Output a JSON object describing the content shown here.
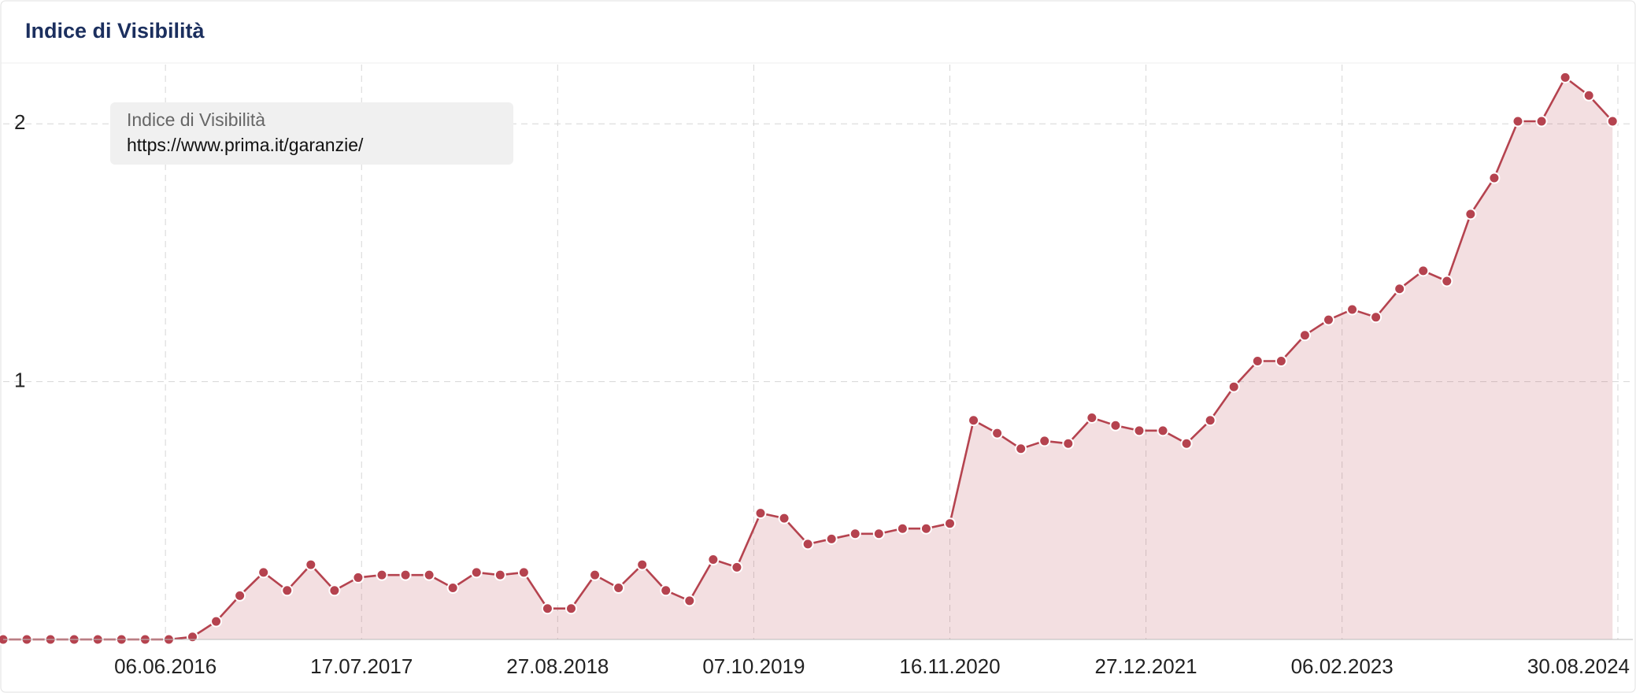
{
  "chart_data": {
    "type": "area",
    "title": "Indice di Visibilità",
    "legend_title": "Indice di Visibilità",
    "x": [
      "06.07.2015",
      "24.08.2015",
      "12.10.2015",
      "30.11.2015",
      "18.01.2016",
      "07.03.2016",
      "25.04.2016",
      "13.06.2016",
      "01.08.2016",
      "19.09.2016",
      "07.11.2016",
      "26.12.2016",
      "13.02.2017",
      "03.04.2017",
      "22.05.2017",
      "10.07.2017",
      "28.08.2017",
      "16.10.2017",
      "04.12.2017",
      "22.01.2018",
      "12.03.2018",
      "30.04.2018",
      "18.06.2018",
      "06.08.2018",
      "24.09.2018",
      "12.11.2018",
      "31.12.2018",
      "18.02.2019",
      "08.04.2019",
      "27.05.2019",
      "15.07.2019",
      "02.09.2019",
      "21.10.2019",
      "09.12.2019",
      "27.01.2020",
      "16.03.2020",
      "04.05.2020",
      "22.06.2020",
      "10.08.2020",
      "28.09.2020",
      "16.11.2020",
      "04.01.2021",
      "22.02.2021",
      "12.04.2021",
      "31.05.2021",
      "19.07.2021",
      "06.09.2021",
      "25.10.2021",
      "13.12.2021",
      "31.01.2022",
      "21.03.2022",
      "09.05.2022",
      "27.06.2022",
      "15.08.2022",
      "03.10.2022",
      "21.11.2022",
      "09.01.2023",
      "27.02.2023",
      "17.04.2023",
      "05.06.2023",
      "24.07.2023",
      "11.09.2023",
      "30.10.2023",
      "18.12.2023",
      "05.02.2024",
      "25.03.2024",
      "13.05.2024",
      "01.07.2024",
      "19.08.2024"
    ],
    "series": [
      {
        "name": "https://www.prima.it/garanzie/",
        "color": "#b5434f",
        "values": [
          0,
          0,
          0,
          0,
          0,
          0,
          0,
          0,
          0.01,
          0.07,
          0.17,
          0.26,
          0.19,
          0.29,
          0.19,
          0.24,
          0.25,
          0.25,
          0.25,
          0.2,
          0.26,
          0.25,
          0.26,
          0.12,
          0.12,
          0.25,
          0.2,
          0.29,
          0.19,
          0.15,
          0.31,
          0.28,
          0.49,
          0.47,
          0.37,
          0.39,
          0.41,
          0.41,
          0.43,
          0.43,
          0.45,
          0.85,
          0.8,
          0.74,
          0.77,
          0.76,
          0.86,
          0.83,
          0.81,
          0.81,
          0.76,
          0.85,
          0.98,
          1.08,
          1.08,
          1.18,
          1.24,
          1.28,
          1.25,
          1.36,
          1.43,
          1.39,
          1.65,
          1.79,
          2.01,
          2.01,
          2.18,
          2.11,
          2.01
        ]
      }
    ],
    "xlim": [
      "06.07.2015",
      "30.09.2024"
    ],
    "xticks": [
      "06.06.2016",
      "17.07.2017",
      "27.08.2018",
      "07.10.2019",
      "16.11.2020",
      "27.12.2021",
      "06.02.2023",
      "30.08.2024"
    ],
    "ylim": [
      0,
      2.23
    ],
    "yticks": [
      1,
      2
    ],
    "grid": true
  }
}
